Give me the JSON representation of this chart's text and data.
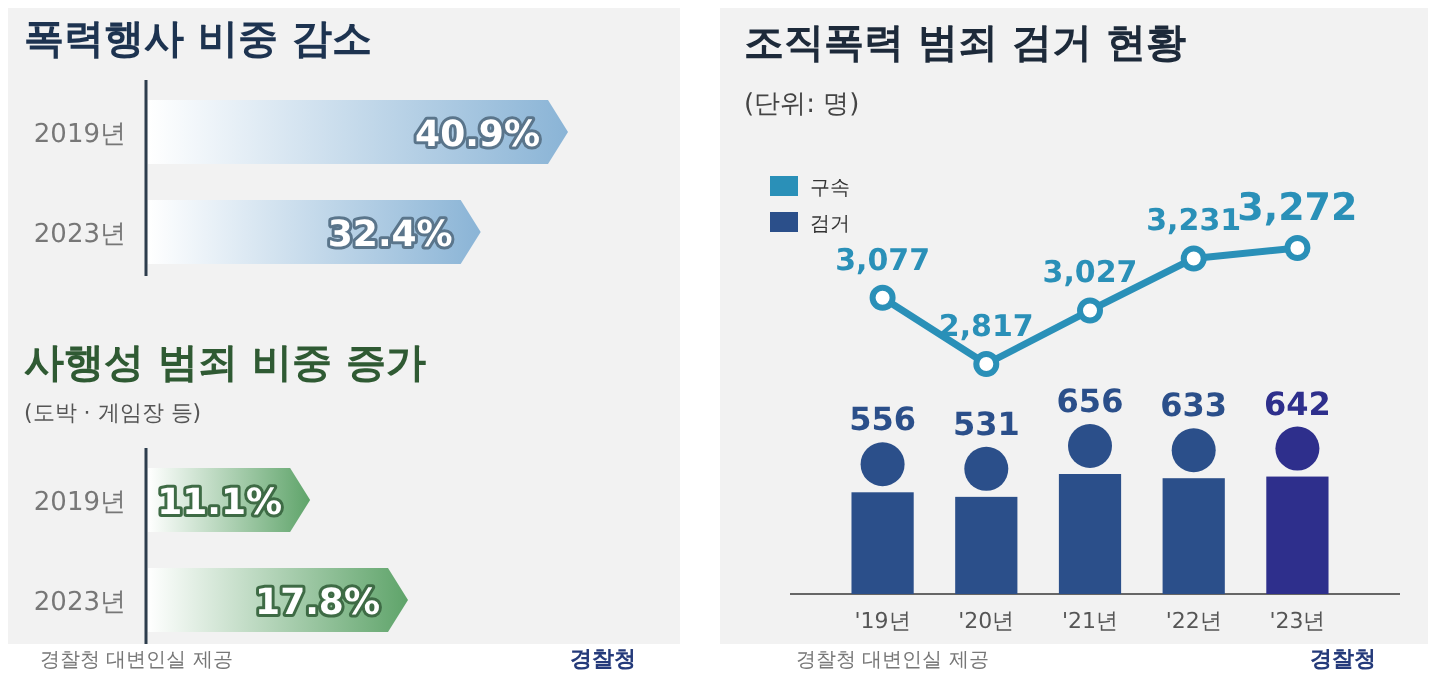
{
  "chart_data": [
    {
      "type": "bar",
      "orientation": "horizontal",
      "title": "폭력행사 비중 감소",
      "categories": [
        "2019년",
        "2023년"
      ],
      "values": [
        40.9,
        32.4
      ],
      "value_labels": [
        "40.9%",
        "32.4%"
      ],
      "color": "#8ab4d6"
    },
    {
      "type": "bar",
      "orientation": "horizontal",
      "title": "사행성 범죄 비중 증가",
      "subtitle": "(도박 · 게임장 등)",
      "categories": [
        "2019년",
        "2023년"
      ],
      "values": [
        11.1,
        17.8
      ],
      "value_labels": [
        "11.1%",
        "17.8%"
      ],
      "color": "#5fa46a",
      "annotations": [
        "경찰청 대변인실 제공",
        "경찰청"
      ]
    },
    {
      "type": "line",
      "title": "조직폭력 범죄 검거 현황",
      "subtitle": "(단위: 명)",
      "series": [
        {
          "name": "구속",
          "color": "#2a90b8",
          "values": [
            3077,
            2817,
            3027,
            3231,
            3272
          ],
          "value_labels": [
            "3,077",
            "2,817",
            "3,027",
            "3,231",
            "3,272"
          ]
        }
      ],
      "marker": "circle",
      "legend": "top left"
    },
    {
      "type": "bar",
      "categories": [
        "'19년",
        "'20년",
        "'21년",
        "'22년",
        "'23년"
      ],
      "series": [
        {
          "name": "검거",
          "color": "#2b4f8a",
          "colors": [
            "#2b4f8a",
            "#2b4f8a",
            "#2b4f8a",
            "#2b4f8a",
            "#2e2f8c"
          ],
          "values": [
            556,
            531,
            656,
            633,
            642
          ]
        }
      ],
      "data_labels": true,
      "legend": "top left",
      "annotations": [
        "경찰청 대변인실 제공",
        "경찰청"
      ]
    }
  ]
}
